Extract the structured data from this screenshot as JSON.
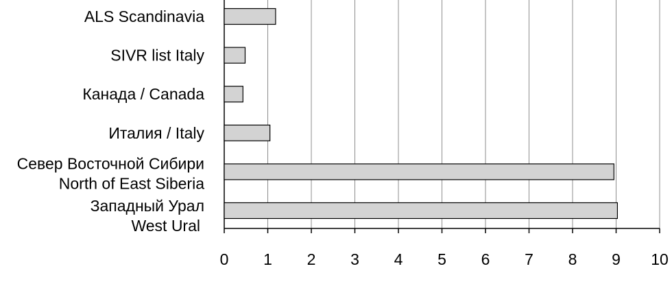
{
  "chart_data": {
    "type": "barh",
    "categories": [
      [
        "ALS Scandinavia"
      ],
      [
        "SIVR list Italy"
      ],
      [
        "Канада / Canada"
      ],
      [
        "Италия / Italy"
      ],
      [
        "Север Восточной Сибири",
        "North of East Siberia"
      ],
      [
        "Западный Урал",
        "West Ural"
      ]
    ],
    "values": [
      1.18,
      0.48,
      0.43,
      1.05,
      8.95,
      9.03
    ],
    "color": "#d3d3d3",
    "xlim": [
      0,
      10
    ],
    "xticks": [
      0,
      1,
      2,
      3,
      4,
      5,
      6,
      7,
      8,
      9,
      10
    ],
    "grid": true
  }
}
